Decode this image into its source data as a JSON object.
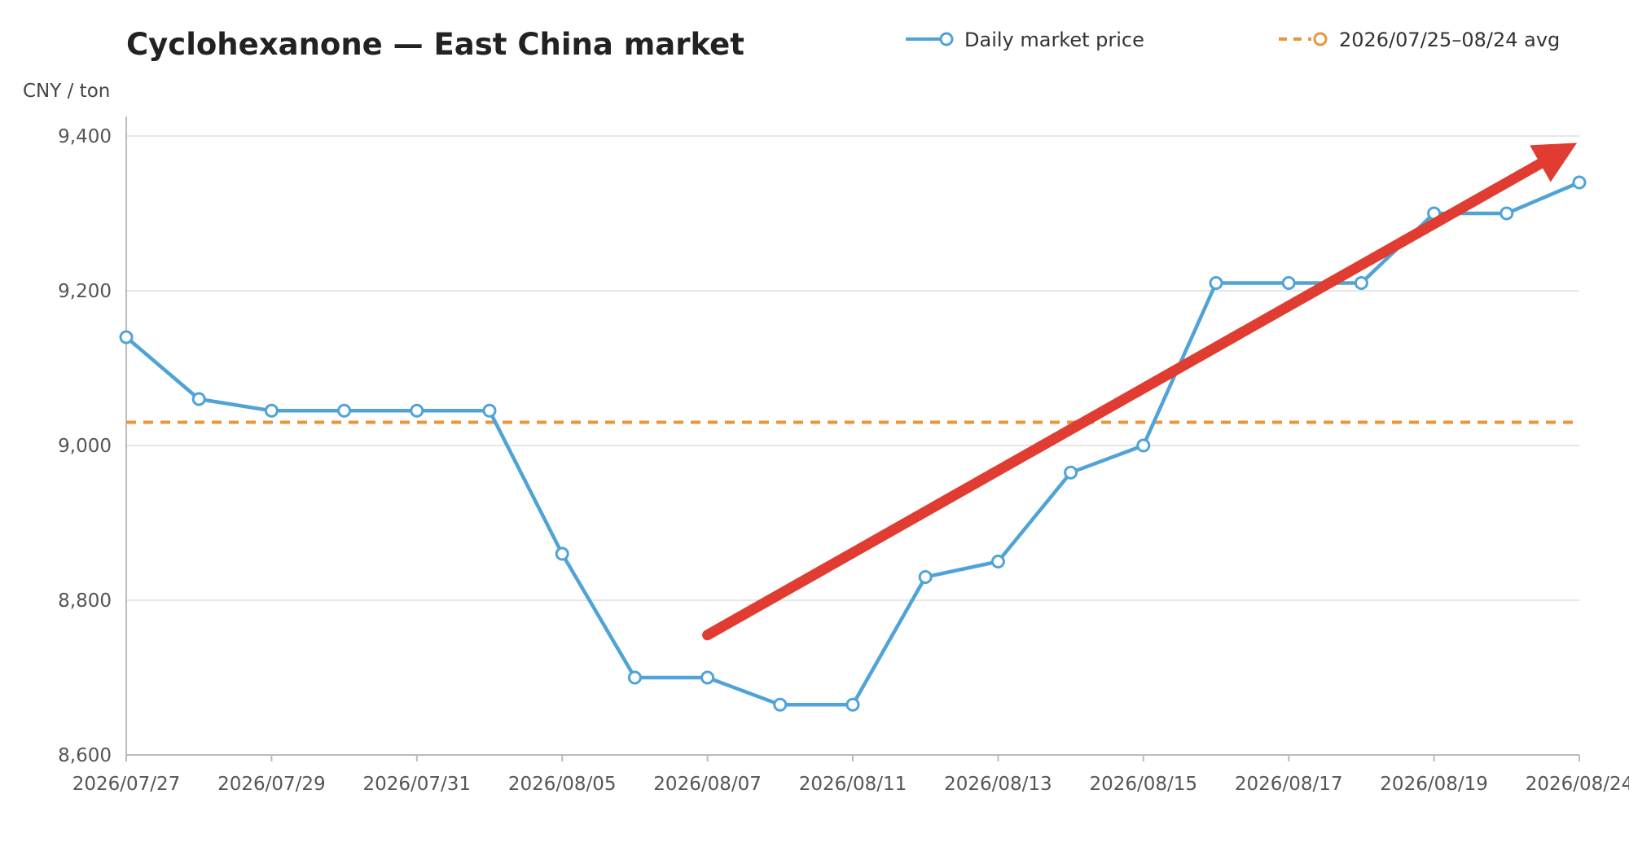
{
  "chart_data": {
    "type": "line",
    "title": "Cyclohexanone — East China market",
    "ylabel": "CNY / ton",
    "xlabel": "",
    "ylim": [
      8600,
      9400
    ],
    "yticks": [
      8600,
      8800,
      9000,
      9200,
      9400
    ],
    "ytick_labels": [
      "8,600",
      "8,800",
      "9,000",
      "9,200",
      "9,400"
    ],
    "x": [
      "2026/07/27",
      "2026/07/28",
      "2026/07/29",
      "2026/07/30",
      "2026/07/31",
      "2026/08/03",
      "2026/08/05",
      "2026/08/06",
      "2026/08/07",
      "2026/08/10",
      "2026/08/11",
      "2026/08/12",
      "2026/08/13",
      "2026/08/14",
      "2026/08/15",
      "2026/08/16",
      "2026/08/17",
      "2026/08/18",
      "2026/08/19",
      "2026/08/20",
      "2026/08/24"
    ],
    "xtick_labels": [
      "2026/07/27",
      "2026/07/29",
      "2026/07/31",
      "2026/08/05",
      "2026/08/07",
      "2026/08/11",
      "2026/08/13",
      "2026/08/15",
      "2026/08/17",
      "2026/08/19",
      "2026/08/24"
    ],
    "series": [
      {
        "name": "Daily market price",
        "color": "#4fa3d6",
        "values": [
          9140,
          9060,
          9045,
          9045,
          9045,
          9045,
          8860,
          8700,
          8700,
          8665,
          8665,
          8830,
          8850,
          8965,
          9000,
          9210,
          9210,
          9210,
          9300,
          9300,
          9340
        ]
      },
      {
        "name": "2026/07/25–08/24 avg",
        "color": "#e8963a",
        "style": "dashed",
        "value": 9030
      }
    ],
    "annotation": {
      "kind": "trend-arrow",
      "color": "#e03c31",
      "from": {
        "x": "2026/08/07",
        "y": 8755
      },
      "to": {
        "x": "2026/08/24",
        "y": 9375
      }
    },
    "grid": true,
    "legend_position": "top-right"
  }
}
